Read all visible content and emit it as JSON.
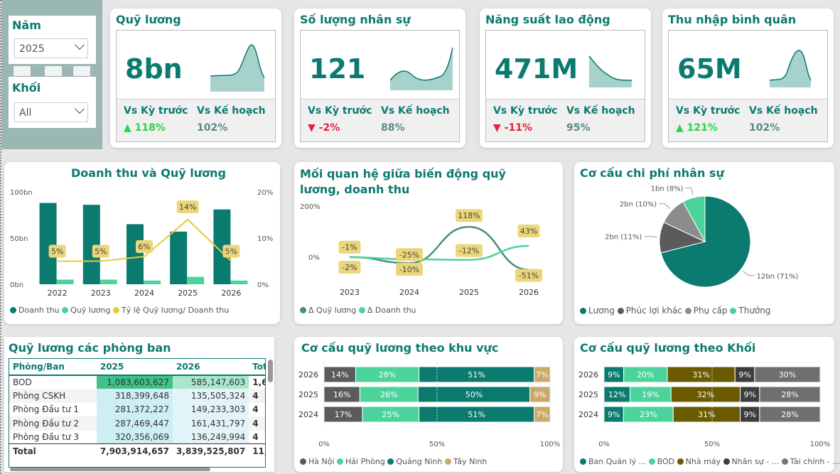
{
  "filters": {
    "year_label": "Năm",
    "year_value": "2025",
    "block_label": "Khối",
    "block_value": "All"
  },
  "kpis": [
    {
      "title": "Quỹ lương",
      "value": "8bn",
      "prev_label": "Vs Kỳ trước",
      "prev_value": "▲ 118%",
      "plan_label": "Vs Kế hoạch",
      "plan_value": "102%"
    },
    {
      "title": "Số lượng nhân sự",
      "value": "121",
      "prev_label": "Vs Kỳ trước",
      "prev_value": "▼ -2%",
      "plan_label": "Vs Kế hoạch",
      "plan_value": "88%"
    },
    {
      "title": "Năng suất lao động",
      "value": "471M",
      "prev_label": "Vs Kỳ trước",
      "prev_value": "▼ -11%",
      "plan_label": "Vs Kế hoạch",
      "plan_value": "95%"
    },
    {
      "title": "Thu nhập bình quân",
      "value": "65M",
      "prev_label": "Vs Kỳ trước",
      "prev_value": "▲ 121%",
      "plan_label": "Vs Kế hoạch",
      "plan_value": "102%"
    }
  ],
  "colors": {
    "teal": "#0b7a6f",
    "light_teal": "#4cd39b",
    "yellow": "#e8c93a",
    "dark_gray": "#5b5b5b",
    "gray": "#8c8c8c",
    "olive": "#6b5a00",
    "tan": "#c9a86a"
  },
  "chart_data": [
    {
      "type": "bar",
      "title": "Doanh thu và Quỹ lương",
      "categories": [
        "2022",
        "2023",
        "2024",
        "2025",
        "2026"
      ],
      "series": [
        {
          "name": "Doanh thu",
          "values": [
            88,
            86,
            65,
            57,
            81
          ]
        },
        {
          "name": "Quỹ lương",
          "values": [
            5,
            5,
            4,
            8,
            4
          ]
        },
        {
          "name": "Tỷ lệ Quỹ lương/ Doanh thu",
          "values": [
            5,
            5,
            6,
            14,
            5
          ],
          "labels": [
            "5%",
            "5%",
            "6%",
            "14%",
            "5%"
          ]
        }
      ],
      "y_ticks": [
        "0bn",
        "50bn",
        "100bn"
      ],
      "y2_ticks": [
        "0%",
        "10%",
        "20%"
      ],
      "ylim": [
        0,
        100
      ],
      "y2lim": [
        0,
        20
      ]
    },
    {
      "type": "line",
      "title": "Mối quan hệ giữa biến động quỹ lương, doanh thu",
      "categories": [
        "2023",
        "2024",
        "2025",
        "2026"
      ],
      "series": [
        {
          "name": "Δ Quỹ lương",
          "values": [
            -1,
            -25,
            118,
            -51
          ],
          "labels": [
            "-1%",
            "-25%",
            "118%",
            "-51%"
          ]
        },
        {
          "name": "Δ Doanh thu",
          "values": [
            -2,
            -10,
            -12,
            43
          ],
          "labels": [
            "-2%",
            "-10%",
            "-12%",
            "43%"
          ]
        }
      ],
      "y_ticks": [
        "0%",
        "200%"
      ]
    },
    {
      "type": "pie",
      "title": "Cơ cấu chi phí nhân sự",
      "slices": [
        {
          "name": "Lương",
          "value": 71,
          "label": "12bn (71%)"
        },
        {
          "name": "Phúc lợi khác",
          "value": 11,
          "label": "2bn (11%)"
        },
        {
          "name": "Phụ cấp",
          "value": 10,
          "label": "2bn (10%)"
        },
        {
          "name": "Thưởng",
          "value": 8,
          "label": "1bn (8%)"
        }
      ]
    },
    {
      "type": "bar",
      "title": "Cơ cấu quỹ lương theo khu vực",
      "stacked": "100%",
      "categories": [
        "2026",
        "2025",
        "2024"
      ],
      "series": [
        {
          "name": "Hà Nội",
          "values": [
            14,
            16,
            17
          ]
        },
        {
          "name": "Hải Phòng",
          "values": [
            28,
            26,
            25
          ]
        },
        {
          "name": "Quảng Ninh",
          "values": [
            51,
            50,
            51
          ]
        },
        {
          "name": "Tây Ninh",
          "values": [
            7,
            9,
            7
          ]
        }
      ],
      "x_ticks": [
        "0%",
        "50%",
        "100%"
      ]
    },
    {
      "type": "bar",
      "title": "Cơ cấu quỹ lương theo Khối",
      "stacked": "100%",
      "categories": [
        "2026",
        "2025",
        "2024"
      ],
      "series": [
        {
          "name": "Ban Quản lý ...",
          "values": [
            9,
            12,
            9
          ]
        },
        {
          "name": "BOD",
          "values": [
            20,
            19,
            23
          ]
        },
        {
          "name": "Nhà máy",
          "values": [
            31,
            32,
            31
          ]
        },
        {
          "name": "Nhân sự - ...",
          "values": [
            9,
            9,
            9
          ]
        },
        {
          "name": "Tài chính - ...",
          "values": [
            30,
            28,
            28
          ]
        }
      ],
      "x_ticks": [
        "0%",
        "50%",
        "100%"
      ]
    },
    {
      "type": "table",
      "title": "Quỹ lương các phòng ban",
      "columns": [
        "Phòng/Ban",
        "2025",
        "2026",
        "Total"
      ],
      "rows": [
        [
          "BOD",
          "1,083,603,627",
          "585,147,603",
          "1,6"
        ],
        [
          "Phòng CSKH",
          "318,399,648",
          "135,505,324",
          "4"
        ],
        [
          "Phòng Đầu tư 1",
          "281,372,227",
          "149,233,303",
          "4"
        ],
        [
          "Phòng Đầu tư 2",
          "287,469,447",
          "161,431,797",
          "4"
        ],
        [
          "Phòng Đầu tư 3",
          "320,356,069",
          "136,249,994",
          "4"
        ]
      ],
      "total": [
        "Total",
        "7,903,914,657",
        "3,839,525,807",
        "11,7"
      ]
    }
  ]
}
